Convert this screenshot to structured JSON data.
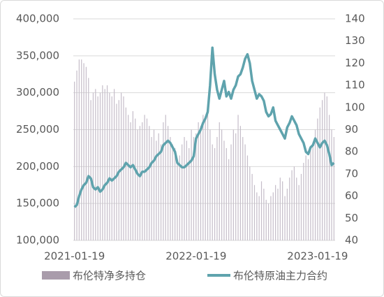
{
  "chart_data": {
    "type": "bar-line",
    "categories": [
      "2021-01-19",
      null,
      null,
      null,
      null,
      null,
      null,
      null,
      null,
      null,
      null,
      null,
      null,
      null,
      null,
      null,
      null,
      null,
      null,
      null,
      null,
      null,
      null,
      null,
      null,
      null,
      null,
      null,
      null,
      null,
      null,
      null,
      null,
      null,
      null,
      null,
      null,
      null,
      null,
      null,
      null,
      null,
      null,
      null,
      null,
      null,
      null,
      null,
      null,
      null,
      null,
      null,
      "2022-01-19",
      null,
      null,
      null,
      null,
      null,
      null,
      null,
      null,
      null,
      null,
      null,
      null,
      null,
      null,
      null,
      null,
      null,
      null,
      null,
      null,
      null,
      null,
      null,
      null,
      null,
      null,
      null,
      null,
      null,
      null,
      null,
      null,
      null,
      null,
      null,
      null,
      null,
      null,
      null,
      null,
      null,
      null,
      null,
      null,
      null,
      null,
      null,
      null,
      null,
      null,
      null,
      "2023-01-19",
      null,
      null,
      null,
      null,
      null,
      null,
      null
    ],
    "series": [
      {
        "name": "布伦特净多持仓",
        "type": "bar",
        "color": "#c5bdc9",
        "legend_color": "#a99cab",
        "values": [
          315000,
          330000,
          345000,
          345000,
          340000,
          335000,
          320000,
          290000,
          300000,
          305000,
          295000,
          300000,
          310000,
          305000,
          310000,
          300000,
          295000,
          305000,
          285000,
          290000,
          300000,
          295000,
          280000,
          270000,
          260000,
          275000,
          265000,
          250000,
          255000,
          260000,
          270000,
          265000,
          255000,
          240000,
          250000,
          235000,
          245000,
          230000,
          260000,
          270000,
          255000,
          240000,
          230000,
          225000,
          210000,
          215000,
          230000,
          240000,
          235000,
          225000,
          250000,
          240000,
          245000,
          260000,
          255000,
          270000,
          265000,
          280000,
          250000,
          230000,
          225000,
          240000,
          260000,
          250000,
          235000,
          225000,
          210000,
          230000,
          250000,
          245000,
          270000,
          255000,
          240000,
          230000,
          215000,
          200000,
          190000,
          175000,
          165000,
          160000,
          180000,
          170000,
          155000,
          150000,
          160000,
          165000,
          175000,
          170000,
          185000,
          180000,
          160000,
          170000,
          185000,
          195000,
          200000,
          185000,
          175000,
          190000,
          205000,
          215000,
          210000,
          225000,
          230000,
          250000,
          265000,
          280000,
          290000,
          300000,
          295000,
          270000,
          250000,
          240000
        ]
      },
      {
        "name": "布伦特原油主力合约",
        "type": "line",
        "axis": "y2",
        "color": "#5fa3ad",
        "values": [
          55,
          56,
          60,
          63,
          65,
          66,
          69,
          68,
          64,
          63,
          64,
          62,
          63,
          65,
          66,
          68,
          67,
          68,
          69,
          71,
          72,
          73,
          75,
          74,
          73,
          74,
          72,
          70,
          69,
          71,
          71,
          72,
          73,
          75,
          76,
          78,
          79,
          80,
          83,
          84,
          85,
          84,
          82,
          80,
          75,
          74,
          73,
          73,
          74,
          75,
          76,
          78,
          86,
          88,
          90,
          93,
          95,
          98,
          110,
          127,
          115,
          108,
          104,
          108,
          112,
          105,
          107,
          104,
          108,
          110,
          114,
          115,
          118,
          122,
          124,
          120,
          112,
          108,
          104,
          106,
          105,
          103,
          98,
          96,
          97,
          100,
          94,
          92,
          90,
          88,
          86,
          91,
          93,
          96,
          94,
          92,
          88,
          86,
          84,
          80,
          79,
          82,
          83,
          86,
          84,
          82,
          84,
          85,
          83,
          79,
          74,
          75
        ]
      }
    ],
    "ylim": [
      100000,
      400000
    ],
    "yticks": [
      {
        "value": 100000,
        "label": "100,000"
      },
      {
        "value": 150000,
        "label": "150,000"
      },
      {
        "value": 200000,
        "label": "200,000"
      },
      {
        "value": 250000,
        "label": "250,000"
      },
      {
        "value": 300000,
        "label": "300,000"
      },
      {
        "value": 350000,
        "label": "350,000"
      },
      {
        "value": 400000,
        "label": "400,000"
      }
    ],
    "y2lim": [
      40,
      140
    ],
    "y2ticks": [
      40,
      50,
      60,
      70,
      80,
      90,
      100,
      110,
      120,
      130,
      140
    ],
    "grid": true
  }
}
